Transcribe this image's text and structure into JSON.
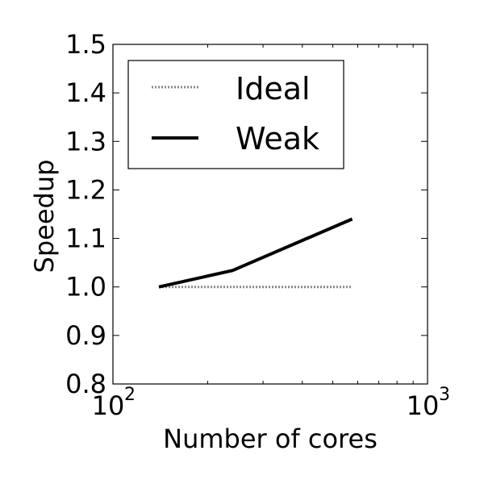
{
  "chart_data": {
    "type": "line",
    "xlabel": "Number of cores",
    "ylabel": "Speedup",
    "x_scale": "log",
    "xlim": [
      100,
      1000
    ],
    "ylim": [
      0.8,
      1.5
    ],
    "x_ticks": [
      {
        "value": 100,
        "base": "10",
        "exp": "2"
      },
      {
        "value": 1000,
        "base": "10",
        "exp": "3"
      }
    ],
    "y_ticks": [
      "0.8",
      "0.9",
      "1.0",
      "1.1",
      "1.2",
      "1.3",
      "1.4",
      "1.5"
    ],
    "grid": false,
    "legend": "upper-left",
    "series": [
      {
        "name": "Ideal",
        "style": "dotted",
        "color": "#888888",
        "x": [
          140,
          576
        ],
        "y": [
          1.0,
          1.0
        ]
      },
      {
        "name": "Weak",
        "style": "solid",
        "color": "#000000",
        "x": [
          140,
          240,
          576
        ],
        "y": [
          1.0,
          1.034,
          1.14
        ]
      }
    ]
  }
}
